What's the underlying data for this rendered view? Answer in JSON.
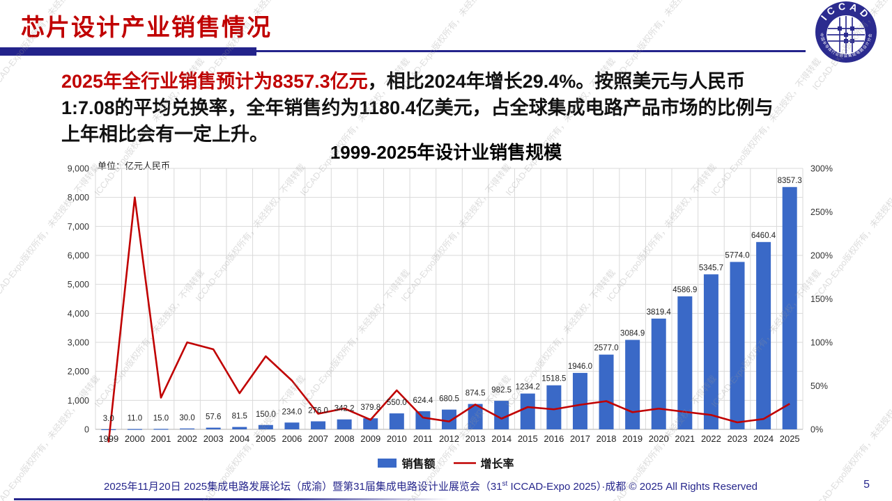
{
  "slide": {
    "title": "芯片设计产业销售情况",
    "page_number": "5",
    "footer": {
      "part1": "2025年11月20日 2025集成电路发展论坛（成渝）暨第31届集成电路设计业展览会（31",
      "sup": "st",
      "part2": " ICCAD-Expo 2025）·成都 © 2025 All Rights Reserved"
    },
    "watermark_text": "ICCAD-Expo版权所有，未经授权，不得转载",
    "logo": {
      "top_text": "ICCAD",
      "bottom_text": "中国半导体行业协会集成电路设计分会"
    },
    "accent_navy": "#23238B",
    "accent_red": "#C00000"
  },
  "paragraph": {
    "line1_red": "2025年全行业销售预计为8357.3亿元",
    "line1_rest": "，相比2024年增长29.4%。按照美元与人民币",
    "line2": "1:7.08的平均兑换率，全年销售约为1180.4亿美元，占全球集成电路产品市场的比例与",
    "line3": "上年相比会有一定上升。"
  },
  "chart_data": {
    "type": "bar",
    "combo": "bar+line",
    "title": "1999-2025年设计业销售规模",
    "unit_label": "单位：亿元人民币",
    "categories": [
      "1999",
      "2000",
      "2001",
      "2002",
      "2003",
      "2004",
      "2005",
      "2006",
      "2007",
      "2008",
      "2009",
      "2010",
      "2011",
      "2012",
      "2013",
      "2014",
      "2015",
      "2016",
      "2017",
      "2018",
      "2019",
      "2020",
      "2021",
      "2022",
      "2023",
      "2024",
      "2025"
    ],
    "series": [
      {
        "name": "销售额",
        "type": "bar",
        "axis": "left",
        "color": "#3A69C7",
        "values": [
          3.0,
          11.0,
          15.0,
          30.0,
          57.6,
          81.5,
          150.0,
          234.0,
          276.0,
          342.2,
          379.8,
          550.0,
          624.4,
          680.5,
          874.5,
          982.5,
          1234.2,
          1518.5,
          1946.0,
          2577.0,
          3084.9,
          3819.4,
          4586.9,
          5345.7,
          5774.0,
          6460.4,
          8357.3
        ],
        "labels": [
          "3.0",
          "11.0",
          "15.0",
          "30.0",
          "57.6",
          "81.5",
          "150.0",
          "234.0",
          "276.0",
          "342.2",
          "379.8",
          "550.0",
          "624.4",
          "680.5",
          "874.5",
          "982.5",
          "1234.2",
          "1518.5",
          "1946.0",
          "2577.0",
          "3084.9",
          "3819.4",
          "4586.9",
          "5345.7",
          "5774.0",
          "6460.4",
          "8357.3"
        ]
      },
      {
        "name": "增长率",
        "type": "line",
        "axis": "right",
        "color": "#C00000",
        "values_pct": [
          -15,
          266.7,
          36.4,
          100,
          92,
          41.5,
          84,
          56,
          17.9,
          24,
          11,
          44.8,
          13.5,
          9,
          28.5,
          12.3,
          25.6,
          23,
          28.2,
          32.4,
          19.7,
          23.8,
          20.1,
          16.5,
          8,
          11.9,
          29.4
        ]
      }
    ],
    "left_axis": {
      "min": 0,
      "max": 9000,
      "step": 1000
    },
    "right_axis": {
      "min": 0,
      "max": 300,
      "step": 50,
      "format": "percent"
    },
    "grid": true,
    "legend_position": "bottom",
    "gridline_color": "#D9D9D9",
    "axis_line_color": "#BFBFBF",
    "tick_label_color": "#333333"
  }
}
